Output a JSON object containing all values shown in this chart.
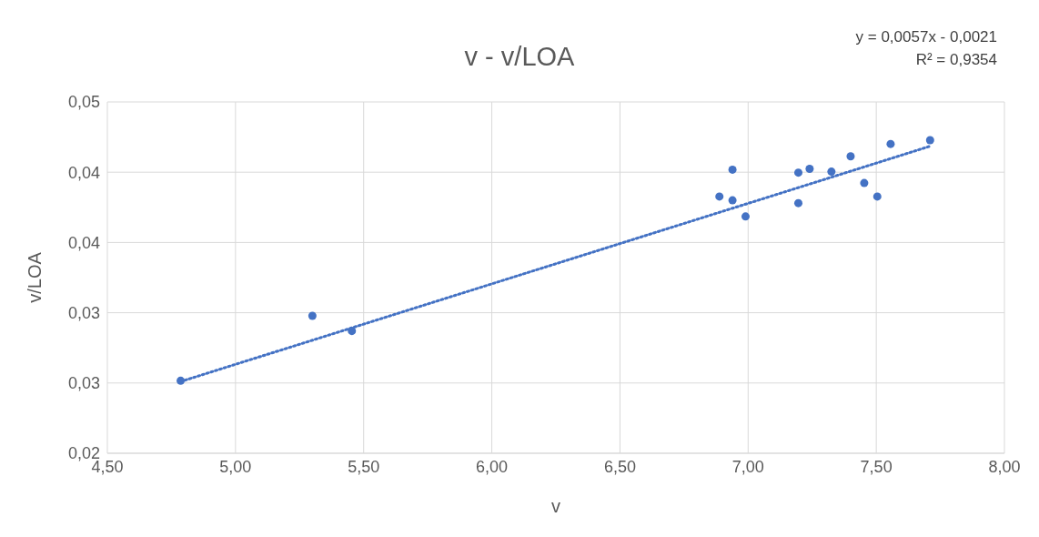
{
  "chart_data": {
    "type": "scatter",
    "title": "v - v/LOA",
    "xlabel": "v",
    "ylabel": "v/LOA",
    "annotations": [
      "y = 0,0057x - 0,0021",
      "R² = 0,9354"
    ],
    "series": [
      {
        "color": "#4472c4",
        "x": [
          4.786,
          5.3,
          5.454,
          6.888,
          6.939,
          6.939,
          6.99,
          7.196,
          7.196,
          7.24,
          7.325,
          7.4,
          7.453,
          7.504,
          7.556,
          7.71
        ],
        "values": [
          0.02516,
          0.02978,
          0.0287,
          0.03827,
          0.038,
          0.04018,
          0.03685,
          0.03997,
          0.0378,
          0.04024,
          0.04004,
          0.04113,
          0.03923,
          0.03827,
          0.04201,
          0.04228
        ]
      },
      {
        "type": "line",
        "color": "#4472c4",
        "line_style": "dotted",
        "marker": "none",
        "x": [
          4.786,
          7.71
        ],
        "values": [
          0.0251,
          0.04185
        ]
      }
    ],
    "marker": "circle",
    "grid": true,
    "legend": false,
    "xlim": [
      4.5,
      8
    ],
    "xticks": [
      {
        "value": 4.5,
        "label": "4,50"
      },
      {
        "value": 5,
        "label": "5,00"
      },
      {
        "value": 5.5,
        "label": "5,50"
      },
      {
        "value": 6,
        "label": "6,00"
      },
      {
        "value": 6.5,
        "label": "6,50"
      },
      {
        "value": 7,
        "label": "7,00"
      },
      {
        "value": 7.5,
        "label": "7,50"
      },
      {
        "value": 8,
        "label": "8,00"
      }
    ],
    "ylim": [
      0.02,
      0.045
    ],
    "yticks": [
      {
        "value": 0.02,
        "label": "0,02"
      },
      {
        "value": 0.025,
        "label": "0,03"
      },
      {
        "value": 0.03,
        "label": "0,03"
      },
      {
        "value": 0.035,
        "label": "0,04"
      },
      {
        "value": 0.04,
        "label": "0,04"
      },
      {
        "value": 0.045,
        "label": "0,05"
      }
    ]
  }
}
